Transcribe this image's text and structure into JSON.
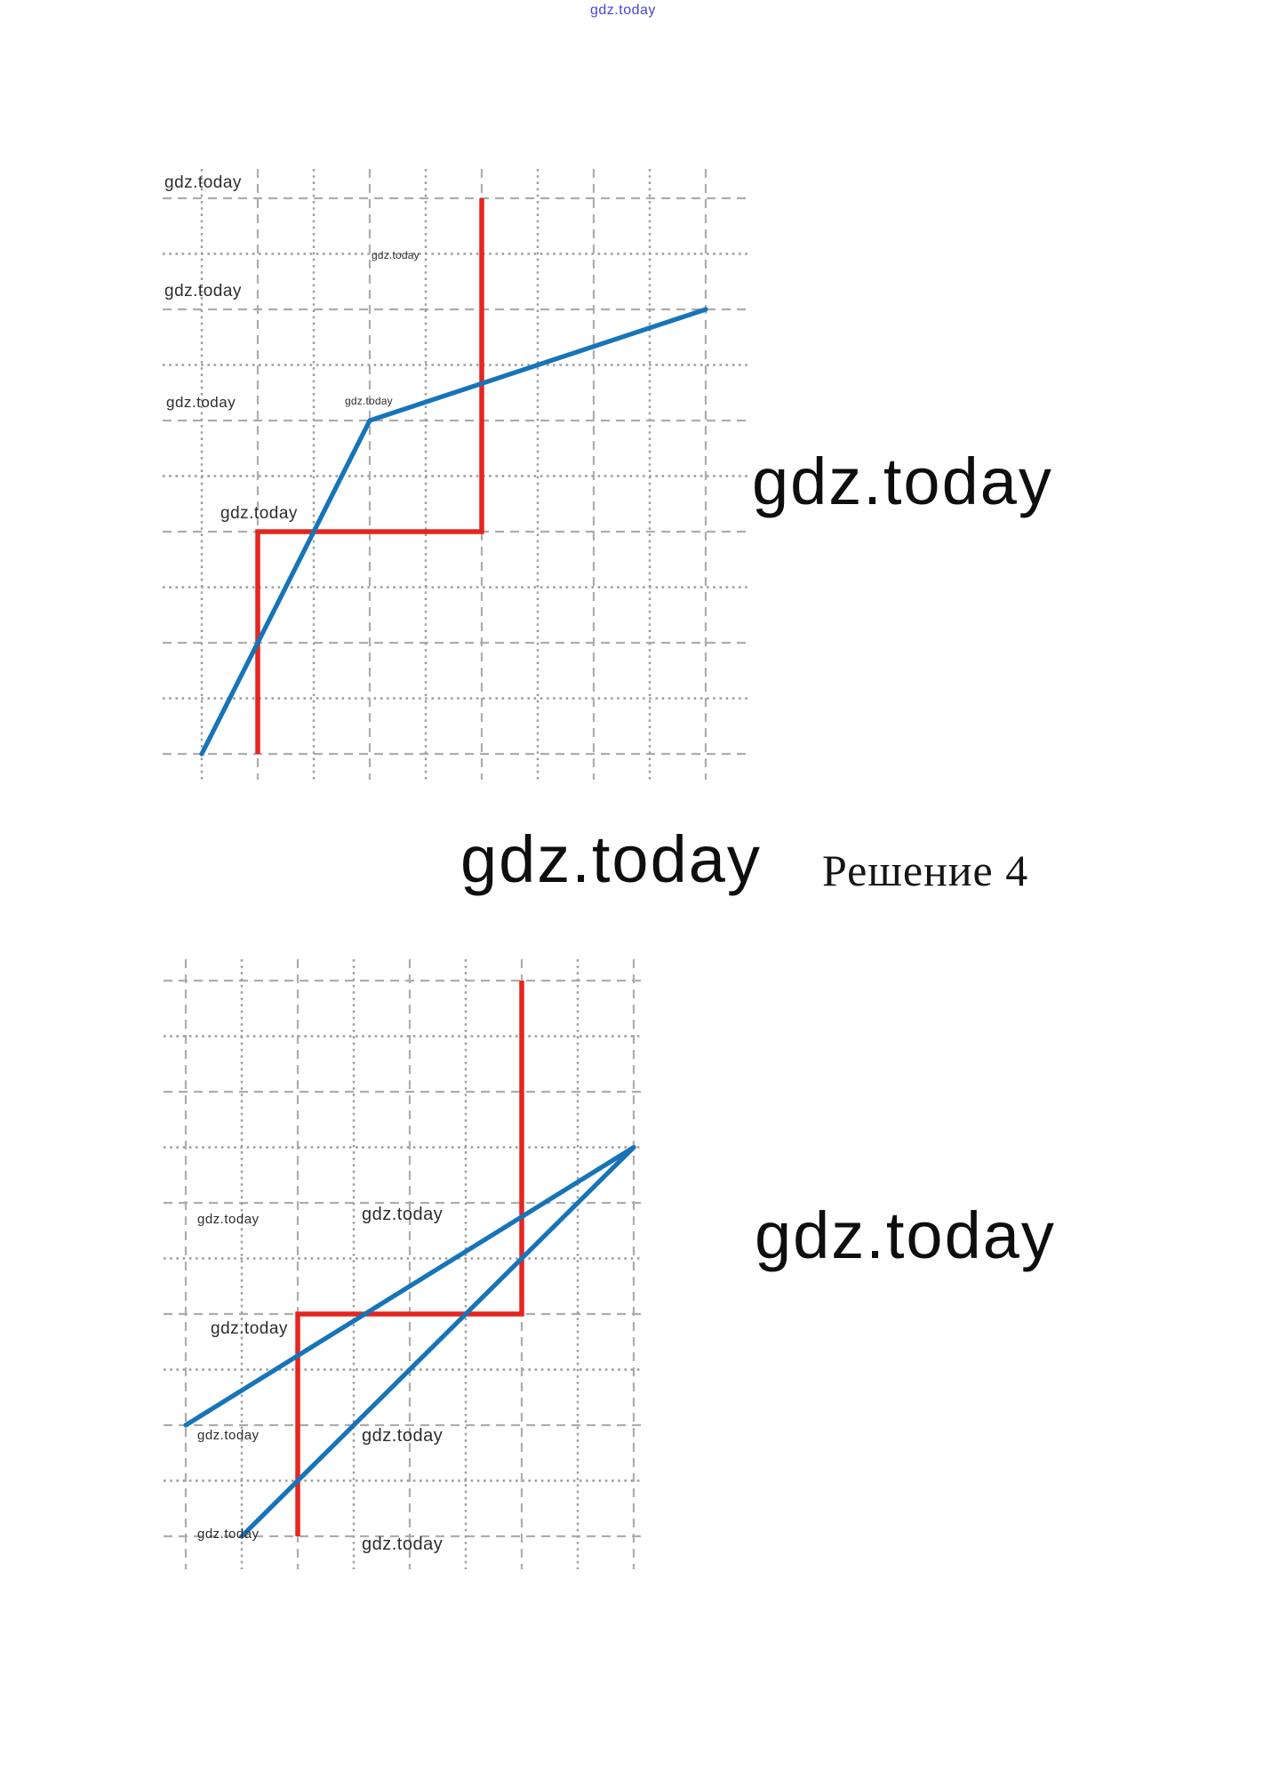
{
  "brand": {
    "watermark": "gdz.today"
  },
  "heading": {
    "solution_label": "Решение 4"
  },
  "colors": {
    "blue_line": "#1774b8",
    "red_line": "#e5261f",
    "grid_dashed": "#adadad",
    "grid_dotted": "#9c9c9c",
    "watermark_small": "#2d2d2d",
    "watermark_big": "#0e0e0e",
    "watermark_top_blue": "#4946d1"
  },
  "chart_data": [
    {
      "type": "line",
      "title": "",
      "xlabel": "",
      "ylabel": "",
      "axes_labeled": false,
      "grid": {
        "cols": 10,
        "rows": 11,
        "style": "alternating dashed/dotted square grid, no axis labels",
        "coords_note": "points are [column,row] of gridline intersections counted from top-left; row increases downward; cell = 1 unit"
      },
      "series": [
        {
          "name": "piecewise-function",
          "color_key": "blue_line",
          "points": [
            [
              0,
              10
            ],
            [
              3,
              4
            ],
            [
              9,
              2
            ]
          ]
        }
      ],
      "marker_steps": [
        {
          "name": "red-reading-lines",
          "color_key": "red_line",
          "points": [
            [
              5,
              0
            ],
            [
              5,
              6
            ],
            [
              1,
              6
            ],
            [
              1,
              10
            ]
          ]
        }
      ]
    },
    {
      "type": "line",
      "title": "",
      "xlabel": "",
      "ylabel": "",
      "axes_labeled": false,
      "grid": {
        "cols": 9,
        "rows": 11,
        "style": "alternating dashed/dotted square grid, no axis labels",
        "coords_note": "points are [column,row] of gridline intersections counted from top-left; row increases downward; cell = 1 unit"
      },
      "series": [
        {
          "name": "line-a-shallow",
          "color_key": "blue_line",
          "points": [
            [
              0,
              8
            ],
            [
              8,
              3
            ]
          ]
        },
        {
          "name": "line-b-steep",
          "color_key": "blue_line",
          "points": [
            [
              1,
              10
            ],
            [
              8,
              3
            ]
          ]
        }
      ],
      "marker_steps": [
        {
          "name": "red-reading-lines",
          "color_key": "red_line",
          "points": [
            [
              6,
              0
            ],
            [
              6,
              6
            ],
            [
              2,
              6
            ],
            [
              2,
              10
            ]
          ]
        }
      ]
    }
  ]
}
